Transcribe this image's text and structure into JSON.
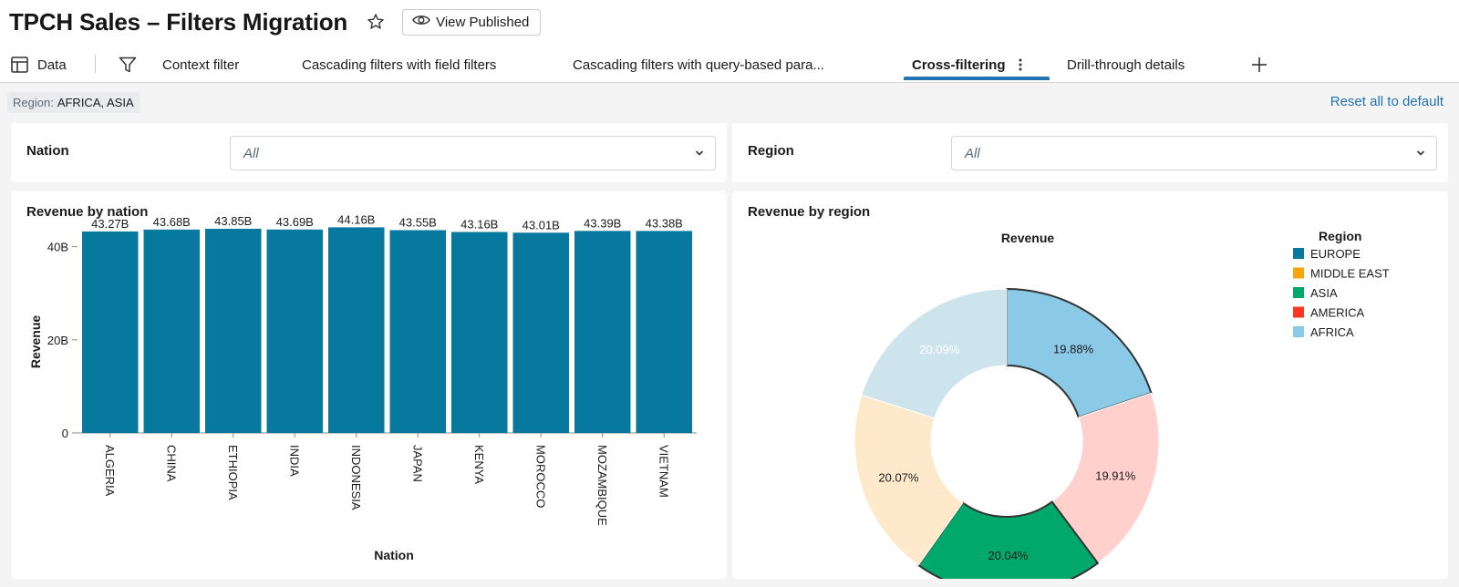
{
  "header": {
    "title": "TPCH Sales – Filters Migration",
    "view_published_label": "View Published"
  },
  "tabs": [
    {
      "label": "Data"
    },
    {
      "label": "Context filter"
    },
    {
      "label": "Cascading filters with field filters"
    },
    {
      "label": "Cascading filters with query-based para..."
    },
    {
      "label": "Cross-filtering"
    },
    {
      "label": "Drill-through details"
    }
  ],
  "filter_bar": {
    "chip_key": "Region:",
    "chip_value": "AFRICA, ASIA",
    "reset_label": "Reset all to default"
  },
  "filters": {
    "nation": {
      "label": "Nation",
      "value": "All"
    },
    "region": {
      "label": "Region",
      "value": "All"
    }
  },
  "colors": {
    "bar": "#08799e",
    "accent": "#2272b4",
    "europe": "#08799e",
    "middle_east": "#fca311",
    "asia": "#00a86b",
    "america": "#ff3621",
    "africa": "#8bcae7"
  },
  "chart_data": [
    {
      "type": "bar",
      "title": "Revenue by nation",
      "xlabel": "Nation",
      "ylabel": "Revenue",
      "categories": [
        "ALGERIA",
        "CHINA",
        "ETHIOPIA",
        "INDIA",
        "INDONESIA",
        "JAPAN",
        "KENYA",
        "MOROCCO",
        "MOZAMBIQUE",
        "VIETNAM"
      ],
      "values": [
        43.27,
        43.68,
        43.85,
        43.69,
        44.16,
        43.55,
        43.16,
        43.01,
        43.39,
        43.38
      ],
      "value_labels": [
        "43.27B",
        "43.68B",
        "43.85B",
        "43.69B",
        "44.16B",
        "43.55B",
        "43.16B",
        "43.01B",
        "43.39B",
        "43.38B"
      ],
      "yticks": [
        0,
        20,
        40
      ],
      "ytick_labels": [
        "0",
        "20B",
        "40B"
      ],
      "ylim": [
        0,
        46
      ]
    },
    {
      "type": "pie",
      "title": "Revenue by region",
      "chart_subtitle": "Revenue",
      "legend_title": "Region",
      "legend": [
        "EUROPE",
        "MIDDLE EAST",
        "ASIA",
        "AMERICA",
        "AFRICA"
      ],
      "slices": [
        {
          "name": "AFRICA",
          "value": 19.88,
          "label": "19.88%",
          "color": "#8bcae7",
          "selected": true
        },
        {
          "name": "AMERICA",
          "value": 19.91,
          "label": "19.91%",
          "color": "#ffd0cc",
          "selected": false
        },
        {
          "name": "ASIA",
          "value": 20.04,
          "label": "20.04%",
          "color": "#00a86b",
          "selected": true
        },
        {
          "name": "MIDDLE EAST",
          "value": 20.07,
          "label": "20.07%",
          "color": "#feeacb",
          "selected": false
        },
        {
          "name": "EUROPE",
          "value": 20.09,
          "label": "20.09%",
          "color": "#cde4ec",
          "selected": false
        }
      ]
    }
  ]
}
